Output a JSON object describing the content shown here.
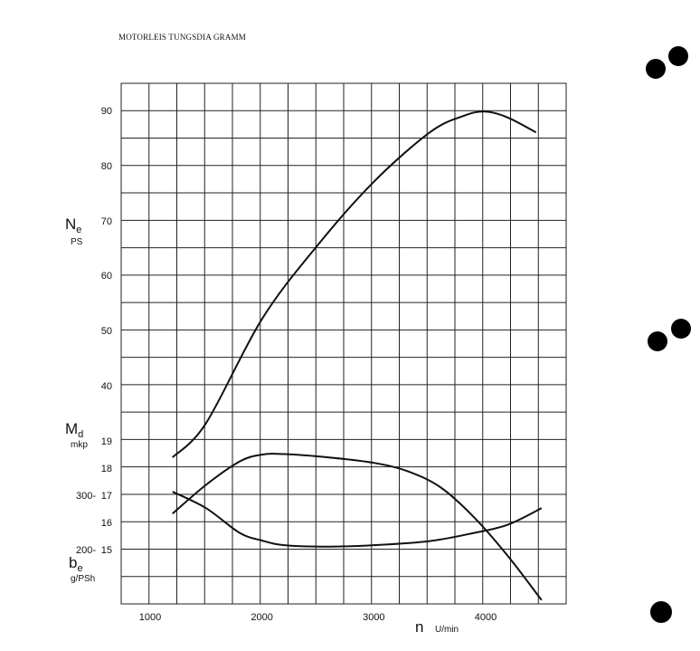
{
  "page": {
    "title": "MOTORLEIS TUNGSDIA GRAMM"
  },
  "chart_data": {
    "type": "line",
    "title": "MOTORLEIS TUNGSDIA GRAMM",
    "xlabel": {
      "symbol": "n",
      "unit": "U/min"
    },
    "x_ticks": [
      1000,
      2000,
      3000,
      4000
    ],
    "xlim": [
      800,
      4900
    ],
    "grid": true,
    "power_axis": {
      "symbol": "N",
      "subscript": "e",
      "unit": "PS",
      "ticks": [
        "90",
        "80",
        "70",
        "60",
        "50",
        "40"
      ]
    },
    "torque_axis": {
      "symbol": "M",
      "subscript": "d",
      "unit": "mkp",
      "ticks": [
        "19",
        "18",
        "17",
        "16",
        "15"
      ]
    },
    "consumption_axis": {
      "symbol": "b",
      "subscript": "e",
      "unit": "g/PSh",
      "ticks": [
        "300-",
        "200-"
      ]
    },
    "series": [
      {
        "x": [
          1200,
          1500,
          2000,
          2500,
          3000,
          3500,
          3800,
          4000,
          4200,
          4450
        ],
        "y": [
          18.4,
          33,
          52,
          65.5,
          77,
          86,
          89,
          89.8,
          88.7,
          86
        ]
      },
      {
        "x": [
          1200,
          1500,
          1800,
          2000,
          2200,
          2600,
          3000,
          3300,
          3600,
          3900,
          4200,
          4500
        ],
        "y": [
          16.35,
          17.4,
          18.25,
          18.5,
          18.52,
          18.4,
          18.2,
          17.9,
          17.3,
          16.2,
          14.8,
          13.2
        ]
      },
      {
        "x": [
          1200,
          1500,
          1800,
          2000,
          2200,
          2600,
          3000,
          3500,
          3900,
          4200,
          4500
        ],
        "y": [
          17.15,
          16.55,
          15.65,
          15.37,
          15.2,
          15.15,
          15.2,
          15.35,
          15.65,
          15.95,
          16.55
        ]
      }
    ]
  },
  "decorations": {
    "punch_holes": 5
  }
}
